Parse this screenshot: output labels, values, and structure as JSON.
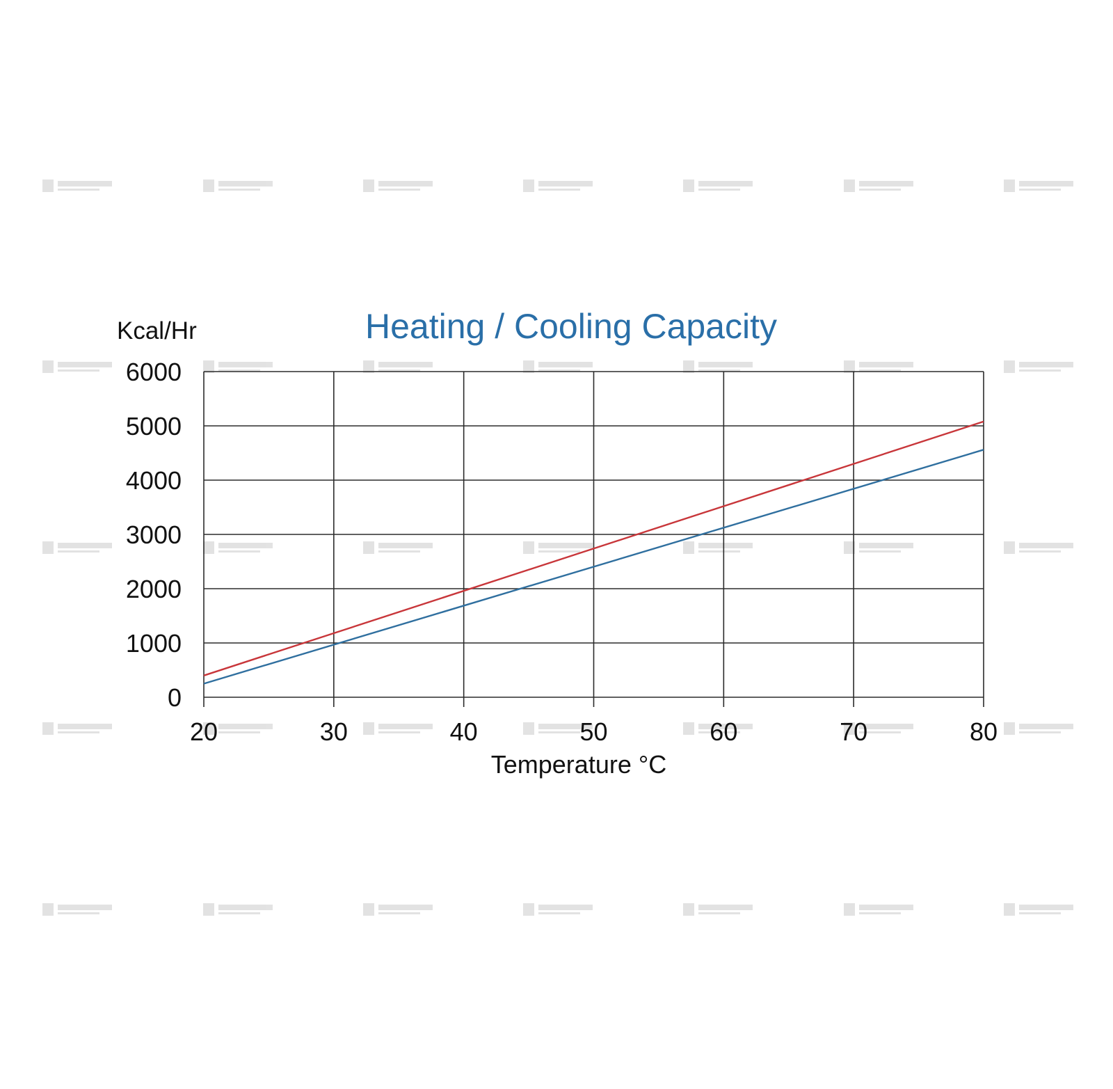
{
  "chart_data": {
    "type": "line",
    "title": "Heating / Cooling Capacity",
    "ylabel": "Kcal/Hr",
    "xlabel": "Temperature °C",
    "x": [
      20,
      80
    ],
    "xticks": [
      "20",
      "30",
      "40",
      "50",
      "60",
      "70",
      "80"
    ],
    "yticks": [
      "0",
      "1000",
      "2000",
      "3000",
      "4000",
      "5000",
      "6000"
    ],
    "xlim": [
      20,
      80
    ],
    "ylim": [
      0,
      6000
    ],
    "grid": true,
    "series": [
      {
        "values": [
          400,
          5080
        ],
        "color": "#c8363a"
      },
      {
        "values": [
          250,
          4560
        ],
        "color": "#2f6f9f"
      }
    ]
  },
  "colors": {
    "title": "#2a6fa8",
    "grid": "#2b2b2b",
    "watermark": "#9a9a9a"
  },
  "watermark": {
    "icon": "company-logo-watermark"
  }
}
